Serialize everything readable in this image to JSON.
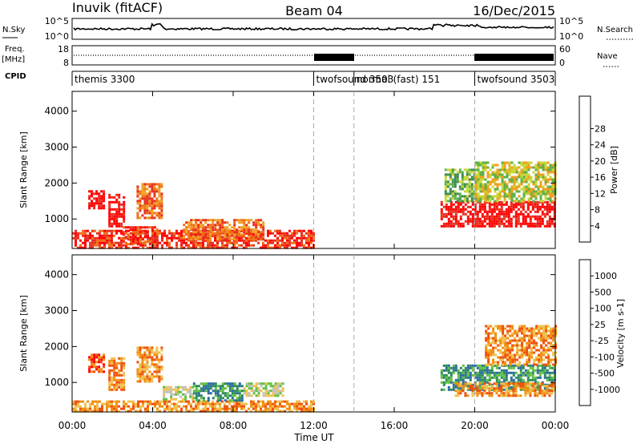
{
  "header": {
    "station": "Inuvik (fitACF)",
    "beam": "Beam 04",
    "date": "16/Dec/2015"
  },
  "top_panels": {
    "nsky_label": "N.Sky",
    "nsky_ticks": [
      "10^5",
      "10^0"
    ],
    "nsearch_label": "N.Search",
    "nsearch_ticks": [
      "10^5",
      "10^0"
    ],
    "freq_label_1": "Freq.",
    "freq_label_2": "[MHz]",
    "freq_ticks": [
      "18",
      "8"
    ],
    "nave_label": "Nave",
    "nave_ticks": [
      "60",
      "0"
    ],
    "cpid_label": "CPID",
    "cpid_segments": [
      {
        "name": "themis 3300",
        "start": 0,
        "end": 12
      },
      {
        "name": "twofsound 3503",
        "start": 12,
        "end": 14
      },
      {
        "name": "normal (fast) 151",
        "start": 14,
        "end": 20
      },
      {
        "name": "twofsound 3503",
        "start": 20,
        "end": 24
      }
    ]
  },
  "chart_data": [
    {
      "type": "heatmap",
      "name": "power",
      "ylabel": "Slant Range [km]",
      "y_ticks": [
        "1000",
        "2000",
        "3000",
        "4000"
      ],
      "ylim": [
        180,
        4550
      ],
      "xlim": [
        0,
        24
      ],
      "colorbar_label": "Power [dB]",
      "colorbar_ticks": [
        "4",
        "8",
        "12",
        "16",
        "20",
        "24",
        "28"
      ],
      "colorbar_colors": [
        "#1a1aff",
        "#2a5fb0",
        "#3d8a4d",
        "#5fb04a",
        "#c8d83a",
        "#f0a020",
        "#f07018",
        "#e83020",
        "#ff0000"
      ],
      "regions": [
        {
          "t0": 0.0,
          "t1": 12.0,
          "r0": 200,
          "r1": 700,
          "level": 7
        },
        {
          "t0": 0.8,
          "t1": 1.6,
          "r0": 1300,
          "r1": 1800,
          "level": 8
        },
        {
          "t0": 1.8,
          "t1": 2.6,
          "r0": 800,
          "r1": 1700,
          "level": 8
        },
        {
          "t0": 2.5,
          "t1": 4.2,
          "r0": 300,
          "r1": 800,
          "level": 7
        },
        {
          "t0": 3.2,
          "t1": 4.4,
          "r0": 1000,
          "r1": 2000,
          "level": 6
        },
        {
          "t0": 5.5,
          "t1": 9.5,
          "r0": 400,
          "r1": 1000,
          "level": 6
        },
        {
          "t0": 18.3,
          "t1": 24.0,
          "r0": 800,
          "r1": 1500,
          "level": 8
        },
        {
          "t0": 18.5,
          "t1": 20.0,
          "r0": 1500,
          "r1": 2400,
          "level": 3
        },
        {
          "t0": 20.0,
          "t1": 24.0,
          "r0": 1500,
          "r1": 2600,
          "level": 4
        }
      ]
    },
    {
      "type": "heatmap",
      "name": "velocity",
      "xlabel": "Time UT",
      "x_ticks": [
        "00:00",
        "04:00",
        "08:00",
        "12:00",
        "16:00",
        "20:00",
        "00:00"
      ],
      "ylabel": "Slant Range [km]",
      "y_ticks": [
        "1000",
        "2000",
        "3000",
        "4000"
      ],
      "ylim": [
        180,
        4550
      ],
      "xlim": [
        0,
        24
      ],
      "colorbar_label": "Velocity [m s-1]",
      "colorbar_ticks": [
        "-1000",
        "-500",
        "-100",
        "-25",
        "25",
        "100",
        "500",
        "1000"
      ],
      "colorbar_colors": [
        "#ff0000",
        "#f05010",
        "#f09010",
        "#f0c050",
        "#c0c0c0",
        "#5fc040",
        "#2a8a5a",
        "#2a6aa0",
        "#2020e0"
      ],
      "regions": [
        {
          "t0": 0.0,
          "t1": 12.0,
          "r0": 200,
          "r1": 500,
          "level": 2
        },
        {
          "t0": 0.8,
          "t1": 1.6,
          "r0": 1300,
          "r1": 1800,
          "level": 1
        },
        {
          "t0": 1.8,
          "t1": 2.6,
          "r0": 800,
          "r1": 1700,
          "level": 2
        },
        {
          "t0": 3.2,
          "t1": 4.4,
          "r0": 1000,
          "r1": 2000,
          "level": 2
        },
        {
          "t0": 4.5,
          "t1": 6.0,
          "r0": 500,
          "r1": 900,
          "level": 4
        },
        {
          "t0": 6.0,
          "t1": 8.5,
          "r0": 500,
          "r1": 1000,
          "level": 6
        },
        {
          "t0": 8.5,
          "t1": 10.5,
          "r0": 600,
          "r1": 1000,
          "level": 4
        },
        {
          "t0": 18.3,
          "t1": 24.0,
          "r0": 800,
          "r1": 1500,
          "level": 6
        },
        {
          "t0": 19.0,
          "t1": 24.0,
          "r0": 600,
          "r1": 1000,
          "level": 2
        },
        {
          "t0": 20.5,
          "t1": 24.0,
          "r0": 1500,
          "r1": 2600,
          "level": 2
        }
      ]
    }
  ]
}
